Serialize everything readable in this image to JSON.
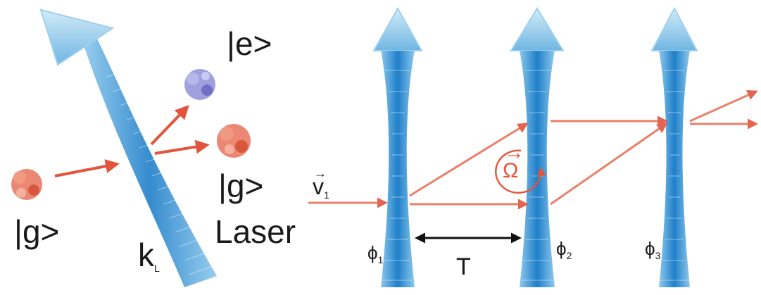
{
  "left_panel": {
    "atom_ground_in": "|g>",
    "atom_excited": "|e>",
    "atom_ground_out": "|g>",
    "laser_label": "Laser",
    "wavevector": {
      "base": "k",
      "sub": "L"
    }
  },
  "right_panel": {
    "velocity": {
      "base": "v",
      "sub": "1",
      "accent": "→"
    },
    "rabi": {
      "symbol": "Ω",
      "accent": "→"
    },
    "interval": "T",
    "phases": [
      {
        "base": "ϕ",
        "sub": "1"
      },
      {
        "base": "ϕ",
        "sub": "2"
      },
      {
        "base": "ϕ",
        "sub": "3"
      }
    ]
  },
  "colors": {
    "beam": "#2a92d6",
    "beam_light": "#a9d6f0",
    "arrow": "#e2553c",
    "atom_ground": "#e8735a",
    "atom_excited": "#8f8fd8"
  }
}
